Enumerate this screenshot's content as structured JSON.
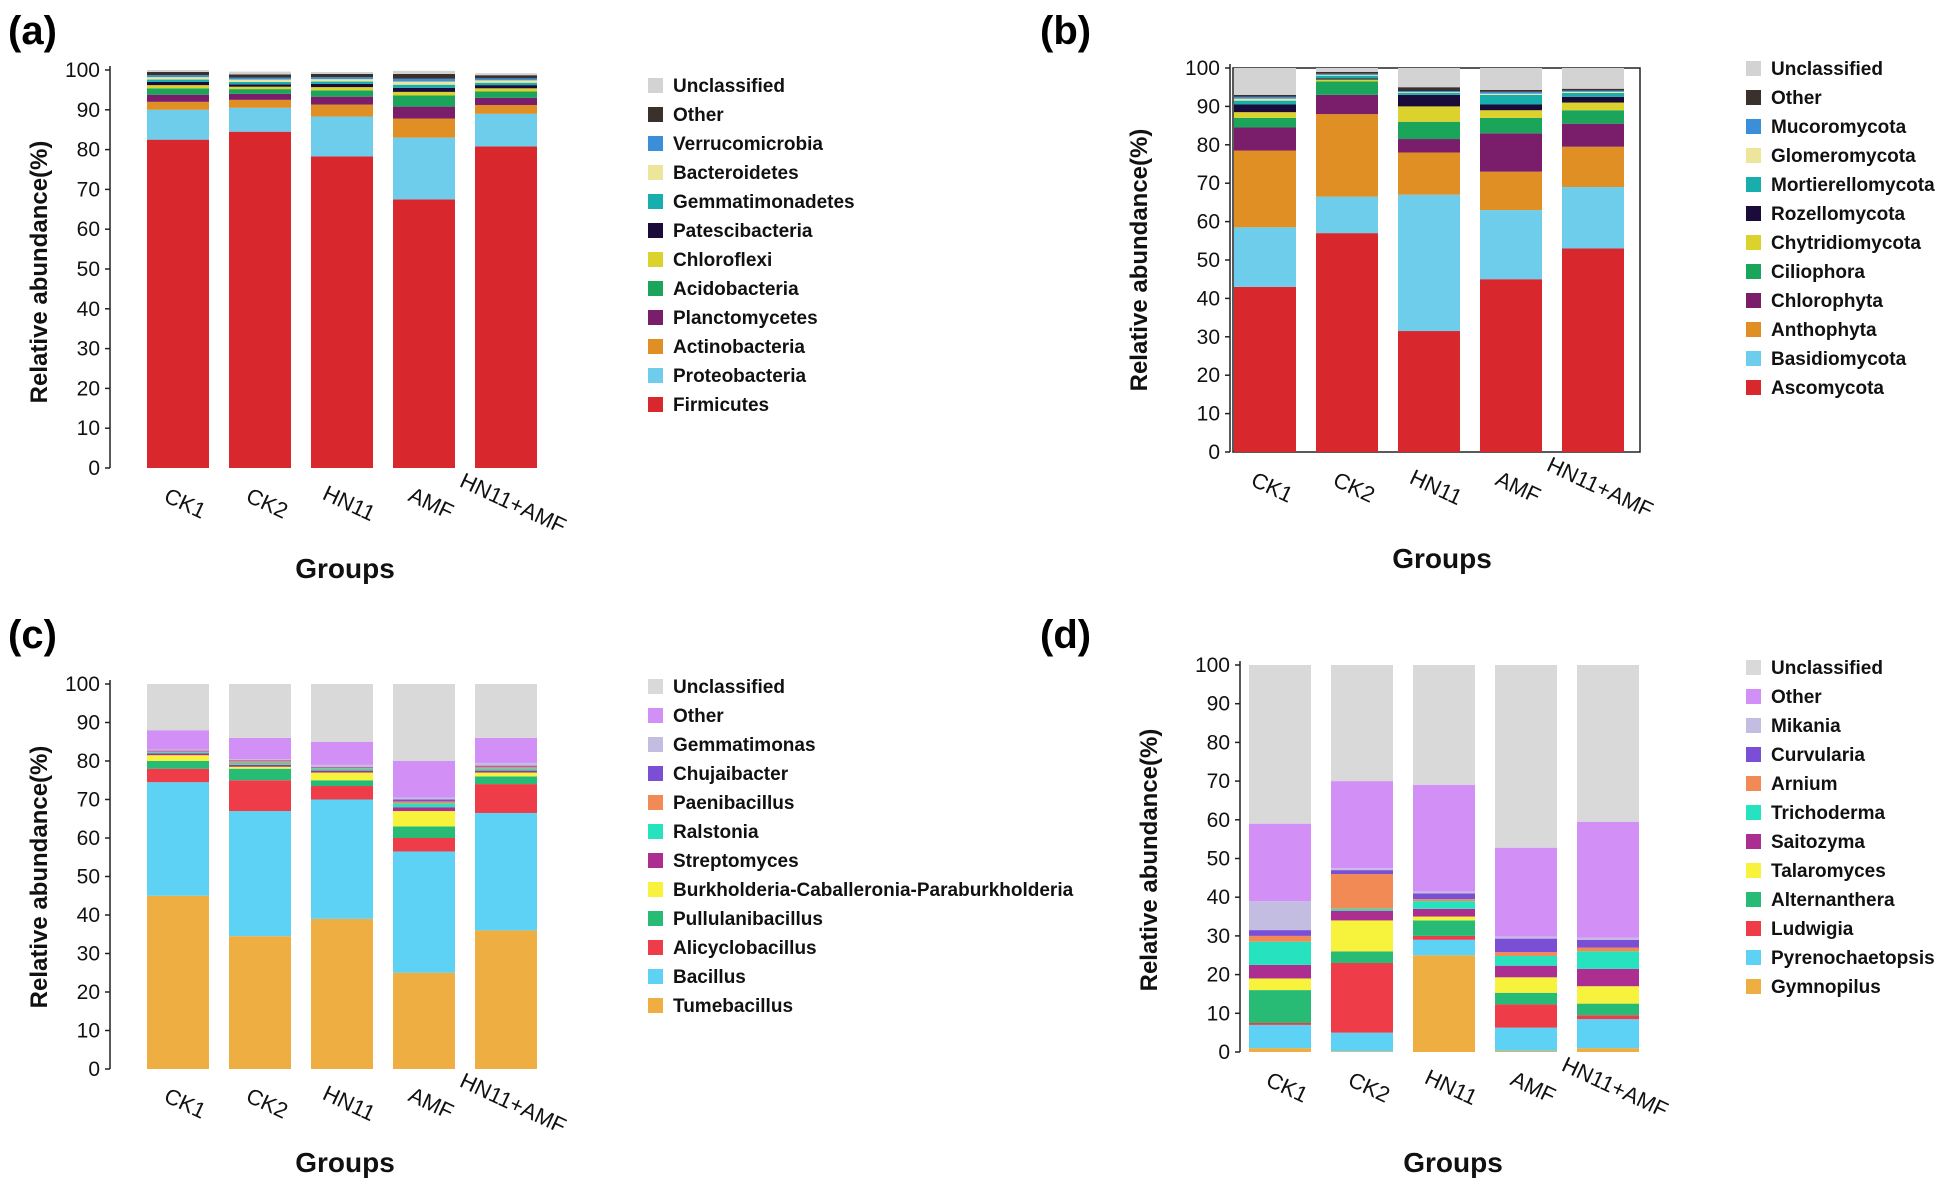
{
  "figure": {
    "panels": [
      {
        "label": "(a)"
      },
      {
        "label": "(b)"
      },
      {
        "label": "(c)"
      },
      {
        "label": "(d)"
      }
    ]
  },
  "chart_data": [
    {
      "type": "bar",
      "stacked": true,
      "panel_label": "(a)",
      "categories": [
        "CK1",
        "CK2",
        "HN11",
        "AMF",
        "HN11+AMF"
      ],
      "xlabel": "Groups",
      "ylabel": "Relative abundance(%)",
      "ylim": [
        0,
        100
      ],
      "yticks": [
        0,
        10,
        20,
        30,
        40,
        50,
        60,
        70,
        80,
        90,
        100
      ],
      "legend_position": "right",
      "series": [
        {
          "name": "Firmicutes",
          "color": "#d9272e",
          "values": [
            82.5,
            84.5,
            78.3,
            67.5,
            80.8
          ]
        },
        {
          "name": "Proteobacteria",
          "color": "#6fcdec",
          "values": [
            7.5,
            6.0,
            10.0,
            15.5,
            8.2
          ]
        },
        {
          "name": "Actinobacteria",
          "color": "#df8f24",
          "values": [
            2.0,
            2.0,
            3.0,
            4.8,
            2.2
          ]
        },
        {
          "name": "Planctomycetes",
          "color": "#7a1e6c",
          "values": [
            1.8,
            1.5,
            2.0,
            3.0,
            1.8
          ]
        },
        {
          "name": "Acidobacteria",
          "color": "#1aa55b",
          "values": [
            1.6,
            1.2,
            1.6,
            2.8,
            1.6
          ]
        },
        {
          "name": "Chloroflexi",
          "color": "#dcd22e",
          "values": [
            0.8,
            0.6,
            0.8,
            0.9,
            0.8
          ]
        },
        {
          "name": "Patescibacteria",
          "color": "#1b0b3a",
          "values": [
            0.8,
            0.6,
            0.8,
            1.0,
            0.8
          ]
        },
        {
          "name": "Gemmatimonadetes",
          "color": "#18aeae",
          "values": [
            0.6,
            0.6,
            0.6,
            0.8,
            0.6
          ]
        },
        {
          "name": "Bacteroidetes",
          "color": "#ece59a",
          "values": [
            0.6,
            0.6,
            0.6,
            0.8,
            0.6
          ]
        },
        {
          "name": "Verrucomicrobia",
          "color": "#3a8fd8",
          "values": [
            0.5,
            0.5,
            0.5,
            0.7,
            0.5
          ]
        },
        {
          "name": "Other",
          "color": "#3a302c",
          "values": [
            0.8,
            0.8,
            0.8,
            1.2,
            0.8
          ]
        },
        {
          "name": "Unclassified",
          "color": "#d3d3d3",
          "values": [
            0.5,
            0.7,
            0.5,
            0.8,
            0.5
          ]
        }
      ]
    },
    {
      "type": "bar",
      "stacked": true,
      "panel_label": "(b)",
      "categories": [
        "CK1",
        "CK2",
        "HN11",
        "AMF",
        "HN11+AMF"
      ],
      "xlabel": "Groups",
      "ylabel": "Relative abundance(%)",
      "ylim": [
        0,
        100
      ],
      "yticks": [
        0,
        10,
        20,
        30,
        40,
        50,
        60,
        70,
        80,
        90,
        100
      ],
      "legend_position": "right",
      "series": [
        {
          "name": "Ascomycota",
          "color": "#d9272e",
          "values": [
            43.0,
            57.0,
            31.5,
            45.0,
            53.0
          ]
        },
        {
          "name": "Basidiomycota",
          "color": "#6fcdec",
          "values": [
            15.5,
            9.5,
            35.5,
            18.0,
            16.0
          ]
        },
        {
          "name": "Anthophyta",
          "color": "#df8f24",
          "values": [
            20.0,
            21.5,
            11.0,
            10.0,
            10.5
          ]
        },
        {
          "name": "Chlorophyta",
          "color": "#7a1e6c",
          "values": [
            6.0,
            5.0,
            3.5,
            10.0,
            6.0
          ]
        },
        {
          "name": "Ciliophora",
          "color": "#1aa55b",
          "values": [
            2.5,
            3.5,
            4.5,
            4.0,
            3.5
          ]
        },
        {
          "name": "Chytridiomycota",
          "color": "#dcd22e",
          "values": [
            1.5,
            0.5,
            4.0,
            2.0,
            2.0
          ]
        },
        {
          "name": "Rozellomycota",
          "color": "#1b0b3a",
          "values": [
            2.0,
            0.3,
            3.0,
            1.5,
            1.5
          ]
        },
        {
          "name": "Mortierellomycota",
          "color": "#18aeae",
          "values": [
            1.0,
            0.7,
            0.5,
            2.5,
            1.0
          ]
        },
        {
          "name": "Glomeromycota",
          "color": "#ece59a",
          "values": [
            0.5,
            0.2,
            0.2,
            0.3,
            0.3
          ]
        },
        {
          "name": "Mucoromycota",
          "color": "#3a8fd8",
          "values": [
            0.5,
            0.3,
            0.3,
            0.5,
            0.3
          ]
        },
        {
          "name": "Other",
          "color": "#3a302c",
          "values": [
            0.5,
            0.5,
            1.0,
            0.5,
            0.5
          ]
        },
        {
          "name": "Unclassified",
          "color": "#d3d3d3",
          "values": [
            7.0,
            1.0,
            5.0,
            5.7,
            5.4
          ]
        }
      ]
    },
    {
      "type": "bar",
      "stacked": true,
      "panel_label": "(c)",
      "categories": [
        "CK1",
        "CK2",
        "HN11",
        "AMF",
        "HN11+AMF"
      ],
      "xlabel": "Groups",
      "ylabel": "Relative abundance(%)",
      "ylim": [
        0,
        100
      ],
      "yticks": [
        0,
        10,
        20,
        30,
        40,
        50,
        60,
        70,
        80,
        90,
        100
      ],
      "legend_position": "right",
      "series": [
        {
          "name": "Tumebacillus",
          "color": "#efae42",
          "values": [
            45.0,
            34.5,
            39.0,
            25.0,
            36.0
          ]
        },
        {
          "name": "Bacillus",
          "color": "#5dd2f4",
          "values": [
            29.5,
            32.5,
            31.0,
            31.5,
            30.5
          ]
        },
        {
          "name": "Alicyclobacillus",
          "color": "#ee3d49",
          "values": [
            3.5,
            8.0,
            3.5,
            3.5,
            7.5
          ]
        },
        {
          "name": "Pullulanibacillus",
          "color": "#27bb75",
          "values": [
            2.0,
            3.0,
            1.5,
            3.0,
            2.0
          ]
        },
        {
          "name": "Burkholderia-Caballeronia-Paraburkholderia",
          "color": "#f7f33d",
          "values": [
            1.5,
            0.5,
            2.0,
            4.0,
            1.0
          ]
        },
        {
          "name": "Streptomyces",
          "color": "#ad2e91",
          "values": [
            0.5,
            0.5,
            0.5,
            1.0,
            0.5
          ]
        },
        {
          "name": "Ralstonia",
          "color": "#27e2bf",
          "values": [
            0.3,
            0.5,
            0.5,
            1.0,
            0.5
          ]
        },
        {
          "name": "Paenibacillus",
          "color": "#f18a54",
          "values": [
            0.2,
            0.5,
            0.3,
            0.5,
            0.5
          ]
        },
        {
          "name": "Chujaibacter",
          "color": "#7a4fd6",
          "values": [
            0.2,
            0.2,
            0.2,
            0.5,
            0.3
          ]
        },
        {
          "name": "Gemmatimonas",
          "color": "#c4bde2",
          "values": [
            0.3,
            0.3,
            0.5,
            0.5,
            0.7
          ]
        },
        {
          "name": "Other",
          "color": "#d28ff5",
          "values": [
            5.0,
            5.5,
            6.0,
            9.5,
            6.5
          ]
        },
        {
          "name": "Unclassified",
          "color": "#d9d9d9",
          "values": [
            12.0,
            14.0,
            15.0,
            20.0,
            14.0
          ]
        }
      ]
    },
    {
      "type": "bar",
      "stacked": true,
      "panel_label": "(d)",
      "categories": [
        "CK1",
        "CK2",
        "HN11",
        "AMF",
        "HN11+AMF"
      ],
      "xlabel": "Groups",
      "ylabel": "Relative abundance(%)",
      "ylim": [
        0,
        100
      ],
      "yticks": [
        0,
        10,
        20,
        30,
        40,
        50,
        60,
        70,
        80,
        90,
        100
      ],
      "legend_position": "right",
      "series": [
        {
          "name": "Gymnopilus",
          "color": "#efae42",
          "values": [
            1.0,
            0.2,
            25.0,
            0.3,
            1.0
          ]
        },
        {
          "name": "Pyrenochaetopsis",
          "color": "#5dd2f4",
          "values": [
            6.0,
            4.8,
            4.0,
            6.0,
            7.5
          ]
        },
        {
          "name": "Ludwigia",
          "color": "#ee3d49",
          "values": [
            0.5,
            18.0,
            1.0,
            6.0,
            1.0
          ]
        },
        {
          "name": "Alternanthera",
          "color": "#27bb75",
          "values": [
            8.5,
            3.0,
            4.0,
            3.0,
            3.0
          ]
        },
        {
          "name": "Talaromyces",
          "color": "#f7f33d",
          "values": [
            3.0,
            8.0,
            1.0,
            4.0,
            4.5
          ]
        },
        {
          "name": "Saitozyma",
          "color": "#ad2e91",
          "values": [
            3.5,
            2.5,
            2.0,
            3.0,
            4.5
          ]
        },
        {
          "name": "Trichoderma",
          "color": "#27e2bf",
          "values": [
            6.0,
            0.5,
            2.0,
            2.5,
            4.5
          ]
        },
        {
          "name": "Arnium",
          "color": "#f18a54",
          "values": [
            1.5,
            9.0,
            0.5,
            1.0,
            1.0
          ]
        },
        {
          "name": "Curvularia",
          "color": "#7a4fd6",
          "values": [
            1.5,
            1.0,
            1.5,
            3.5,
            2.0
          ]
        },
        {
          "name": "Mikania",
          "color": "#c4bde2",
          "values": [
            7.5,
            0.5,
            0.5,
            0.5,
            0.5
          ]
        },
        {
          "name": "Other",
          "color": "#d28ff5",
          "values": [
            20.0,
            22.5,
            27.5,
            23.0,
            30.0
          ]
        },
        {
          "name": "Unclassified",
          "color": "#d9d9d9",
          "values": [
            41.0,
            30.0,
            31.0,
            47.2,
            40.5
          ]
        }
      ]
    }
  ]
}
